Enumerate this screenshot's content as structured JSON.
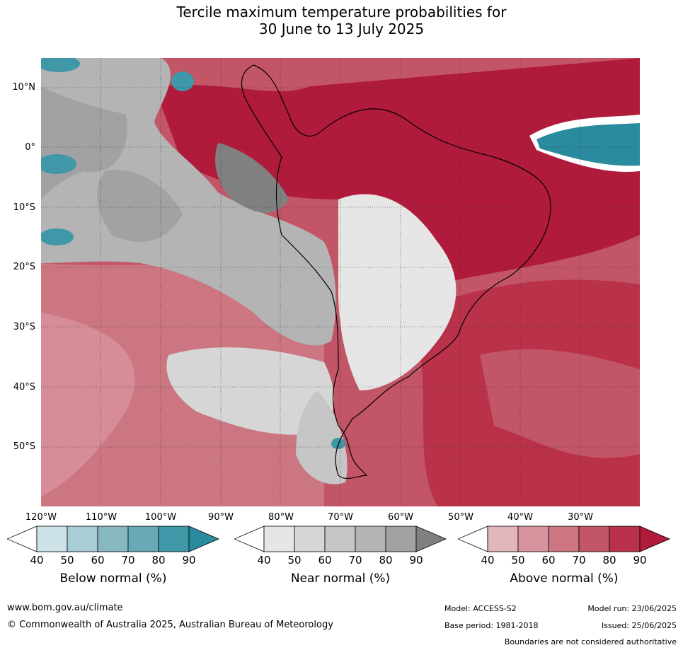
{
  "title_line1": "Tercile maximum temperature probabilities for",
  "title_line2": "30 June to 13 July 2025",
  "lat_labels": [
    "10°N",
    "0°",
    "10°S",
    "20°S",
    "30°S",
    "40°S",
    "50°S"
  ],
  "lon_labels": [
    "120°W",
    "110°W",
    "100°W",
    "90°W",
    "80°W",
    "70°W",
    "60°W",
    "50°W",
    "40°W",
    "30°W"
  ],
  "colorbars": [
    {
      "label": "Below normal (%)",
      "ticks": [
        "40",
        "50",
        "60",
        "70",
        "80",
        "90"
      ],
      "colors": [
        "#ffffff",
        "#cde3e8",
        "#a9cdd4",
        "#88b9c2",
        "#67a9b6",
        "#3f97a7",
        "#2a8a9e"
      ]
    },
    {
      "label": "Near normal (%)",
      "ticks": [
        "40",
        "50",
        "60",
        "70",
        "80",
        "90"
      ],
      "colors": [
        "#ffffff",
        "#e6e6e6",
        "#d6d6d6",
        "#c6c6c6",
        "#b4b4b4",
        "#a2a2a2",
        "#808080"
      ]
    },
    {
      "label": "Above normal (%)",
      "ticks": [
        "40",
        "50",
        "60",
        "70",
        "80",
        "90"
      ],
      "colors": [
        "#ffffff",
        "#e2b6bd",
        "#d8949e",
        "#cc7681",
        "#c25566",
        "#b93249",
        "#b11b3b"
      ]
    }
  ],
  "footer": {
    "website": "www.bom.gov.au/climate",
    "copyright": "© Commonwealth of Australia 2025, Australian Bureau of Meteorology",
    "model": "Model: ACCESS-S2",
    "base_period": "Base period: 1981-2018",
    "model_run": "Model run: 23/06/2025",
    "issued": "Issued: 25/06/2025",
    "disclaimer": "Boundaries are not considered authoritative"
  }
}
